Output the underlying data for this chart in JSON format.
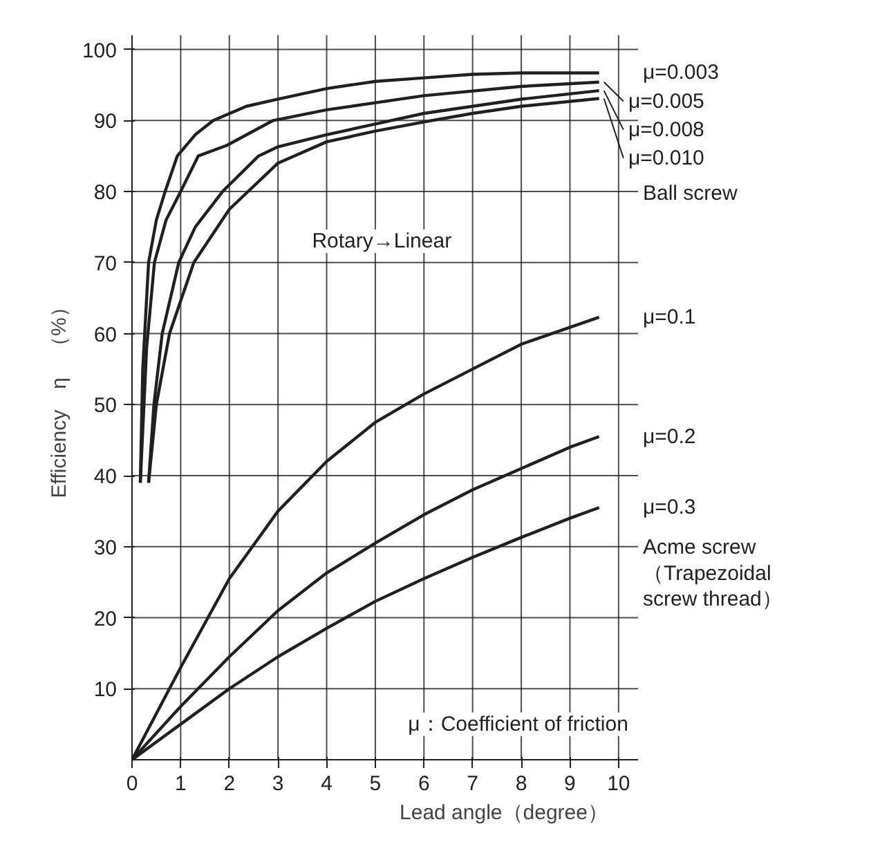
{
  "chart_data": {
    "type": "line",
    "xlabel": "Lead angle（degree）",
    "ylabel": "Efficiency　η　（%）",
    "xlim": [
      0,
      10.4
    ],
    "ylim": [
      0,
      102
    ],
    "xticks": [
      0,
      1,
      2,
      3,
      4,
      5,
      6,
      7,
      8,
      9,
      10
    ],
    "yticks": [
      10,
      20,
      30,
      40,
      50,
      60,
      70,
      80,
      90,
      100
    ],
    "grid": true,
    "marker": "none",
    "line_style": "solid",
    "series": [
      {
        "name": "μ=0.003",
        "color": "#231f20",
        "x": [
          0.17,
          0.22,
          0.34,
          0.5,
          0.68,
          0.93,
          1.3,
          1.67,
          2.35,
          3,
          4,
          5,
          6,
          7,
          8,
          9.6
        ],
        "values": [
          39,
          55,
          70,
          76,
          80,
          85,
          88,
          90,
          92,
          93,
          94.5,
          95.5,
          96,
          96.5,
          96.7,
          96.7
        ]
      },
      {
        "name": "μ=0.005",
        "color": "#231f20",
        "x": [
          0.17,
          0.3,
          0.46,
          0.7,
          1.0,
          1.36,
          1.95,
          2.9,
          4,
          5,
          6,
          8,
          9.6
        ],
        "values": [
          39,
          58,
          70,
          76,
          80,
          85,
          86.5,
          90,
          91.5,
          92.5,
          93.5,
          94.8,
          95.4
        ]
      },
      {
        "name": "μ=0.008",
        "color": "#231f20",
        "x": [
          0.34,
          0.45,
          0.62,
          0.96,
          1.3,
          1.86,
          2.6,
          3,
          4,
          5,
          6,
          7,
          8,
          9.6
        ],
        "values": [
          39,
          50,
          60,
          70,
          75,
          80,
          85,
          86.3,
          88,
          89.5,
          91,
          92,
          93,
          94.2
        ]
      },
      {
        "name": "μ=0.010",
        "color": "#231f20",
        "x": [
          0.34,
          0.5,
          0.77,
          1.27,
          2,
          3,
          4,
          5,
          6,
          7,
          8,
          9.6
        ],
        "values": [
          39,
          50,
          60,
          70,
          77.5,
          84,
          87,
          88.5,
          89.8,
          91,
          92,
          93.1
        ]
      },
      {
        "name": "μ=0.1",
        "color": "#231f20",
        "x": [
          0,
          1,
          2,
          3,
          4,
          5,
          6,
          7,
          8,
          9.6
        ],
        "values": [
          0,
          13,
          25.5,
          35,
          42,
          47.5,
          51.5,
          55,
          58.5,
          62.3
        ]
      },
      {
        "name": "μ=0.2",
        "color": "#231f20",
        "x": [
          0,
          1,
          2,
          3,
          4,
          5,
          6,
          7,
          8,
          9,
          9.6
        ],
        "values": [
          0,
          7.5,
          14.5,
          21,
          26.3,
          30.5,
          34.5,
          38,
          41,
          44,
          45.5
        ]
      },
      {
        "name": "μ=0.3",
        "color": "#231f20",
        "x": [
          0,
          1,
          2,
          3,
          4,
          5,
          6,
          7,
          8,
          9,
          9.6
        ],
        "values": [
          0,
          5,
          10,
          14.5,
          18.5,
          22.3,
          25.5,
          28.5,
          31.3,
          34,
          35.5
        ]
      }
    ],
    "annotations": [
      "Rotary→Linear",
      "Ball screw",
      "Acme screw\n（Trapezoidal\nscrew thread）",
      "μ：Coefficient of friction"
    ]
  }
}
